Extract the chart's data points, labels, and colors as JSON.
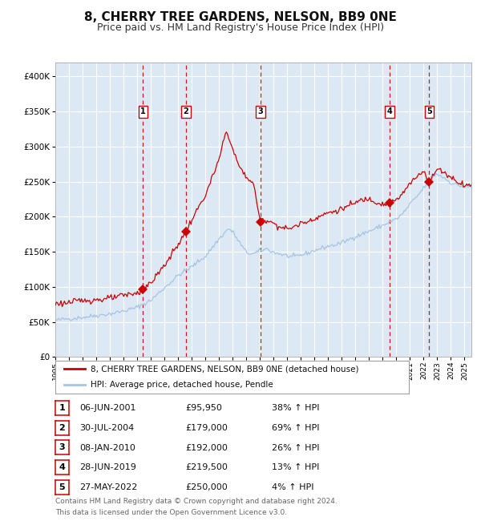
{
  "title": "8, CHERRY TREE GARDENS, NELSON, BB9 0NE",
  "subtitle": "Price paid vs. HM Land Registry's House Price Index (HPI)",
  "title_fontsize": 11,
  "subtitle_fontsize": 9,
  "ylim": [
    0,
    420000
  ],
  "yticks": [
    0,
    50000,
    100000,
    150000,
    200000,
    250000,
    300000,
    350000,
    400000
  ],
  "background_color": "#ffffff",
  "plot_bg_color": "#dce9f5",
  "grid_color": "#ffffff",
  "hpi_color": "#a8c4e0",
  "price_color": "#cc0000",
  "marker_color": "#cc0000",
  "dashed_line_color": "#cc0000",
  "label_box_color": "#ffffff",
  "label_box_edge": "#cc0000",
  "purchases": [
    {
      "label": "1",
      "date_num": 2001.43,
      "price": 95950,
      "date_str": "06-JUN-2001",
      "pct": "38%"
    },
    {
      "label": "2",
      "date_num": 2004.58,
      "price": 179000,
      "date_str": "30-JUL-2004",
      "pct": "69%"
    },
    {
      "label": "3",
      "date_num": 2010.03,
      "price": 192000,
      "date_str": "08-JAN-2010",
      "pct": "26%"
    },
    {
      "label": "4",
      "date_num": 2019.49,
      "price": 219500,
      "date_str": "28-JUN-2019",
      "pct": "13%"
    },
    {
      "label": "5",
      "date_num": 2022.41,
      "price": 250000,
      "date_str": "27-MAY-2022",
      "pct": "4%"
    }
  ],
  "legend_line1": "8, CHERRY TREE GARDENS, NELSON, BB9 0NE (detached house)",
  "legend_line2": "HPI: Average price, detached house, Pendle",
  "table_rows": [
    [
      "1",
      "06-JUN-2001",
      "£95,950",
      "38% ↑ HPI"
    ],
    [
      "2",
      "30-JUL-2004",
      "£179,000",
      "69% ↑ HPI"
    ],
    [
      "3",
      "08-JAN-2010",
      "£192,000",
      "26% ↑ HPI"
    ],
    [
      "4",
      "28-JUN-2019",
      "£219,500",
      "13% ↑ HPI"
    ],
    [
      "5",
      "27-MAY-2022",
      "£250,000",
      "4% ↑ HPI"
    ]
  ],
  "footer_line1": "Contains HM Land Registry data © Crown copyright and database right 2024.",
  "footer_line2": "This data is licensed under the Open Government Licence v3.0.",
  "xmin": 1995.0,
  "xmax": 2025.5,
  "hpi_anchors": [
    [
      1995.0,
      52000
    ],
    [
      1996.0,
      54000
    ],
    [
      1997.0,
      57000
    ],
    [
      1998.0,
      60000
    ],
    [
      1999.0,
      63000
    ],
    [
      2000.0,
      67000
    ],
    [
      2001.0,
      72000
    ],
    [
      2002.0,
      82000
    ],
    [
      2003.0,
      100000
    ],
    [
      2004.0,
      118000
    ],
    [
      2005.0,
      130000
    ],
    [
      2006.0,
      145000
    ],
    [
      2007.0,
      170000
    ],
    [
      2007.7,
      185000
    ],
    [
      2008.0,
      180000
    ],
    [
      2008.5,
      165000
    ],
    [
      2009.0,
      150000
    ],
    [
      2009.5,
      148000
    ],
    [
      2010.0,
      152000
    ],
    [
      2010.5,
      155000
    ],
    [
      2011.0,
      150000
    ],
    [
      2011.5,
      148000
    ],
    [
      2012.0,
      145000
    ],
    [
      2012.5,
      143000
    ],
    [
      2013.0,
      145000
    ],
    [
      2013.5,
      148000
    ],
    [
      2014.0,
      152000
    ],
    [
      2014.5,
      155000
    ],
    [
      2015.0,
      158000
    ],
    [
      2015.5,
      160000
    ],
    [
      2016.0,
      163000
    ],
    [
      2016.5,
      167000
    ],
    [
      2017.0,
      172000
    ],
    [
      2017.5,
      176000
    ],
    [
      2018.0,
      180000
    ],
    [
      2018.5,
      184000
    ],
    [
      2019.0,
      188000
    ],
    [
      2019.5,
      193000
    ],
    [
      2020.0,
      197000
    ],
    [
      2020.5,
      205000
    ],
    [
      2021.0,
      218000
    ],
    [
      2021.5,
      228000
    ],
    [
      2022.0,
      240000
    ],
    [
      2022.5,
      255000
    ],
    [
      2023.0,
      260000
    ],
    [
      2023.5,
      255000
    ],
    [
      2024.0,
      248000
    ],
    [
      2024.5,
      245000
    ],
    [
      2025.0,
      242000
    ]
  ],
  "price_anchors": [
    [
      1995.0,
      76000
    ],
    [
      1996.0,
      78000
    ],
    [
      1997.0,
      80000
    ],
    [
      1998.0,
      82000
    ],
    [
      1999.0,
      84000
    ],
    [
      2000.0,
      87000
    ],
    [
      2001.0,
      90000
    ],
    [
      2001.43,
      95950
    ],
    [
      2002.0,
      105000
    ],
    [
      2003.0,
      130000
    ],
    [
      2004.0,
      160000
    ],
    [
      2004.58,
      179000
    ],
    [
      2005.0,
      195000
    ],
    [
      2006.0,
      230000
    ],
    [
      2007.0,
      280000
    ],
    [
      2007.5,
      320000
    ],
    [
      2007.8,
      310000
    ],
    [
      2008.0,
      295000
    ],
    [
      2008.5,
      270000
    ],
    [
      2009.0,
      255000
    ],
    [
      2009.5,
      248000
    ],
    [
      2010.03,
      192000
    ],
    [
      2010.5,
      195000
    ],
    [
      2011.0,
      190000
    ],
    [
      2011.5,
      185000
    ],
    [
      2012.0,
      182000
    ],
    [
      2012.5,
      185000
    ],
    [
      2013.0,
      190000
    ],
    [
      2013.5,
      193000
    ],
    [
      2014.0,
      198000
    ],
    [
      2014.5,
      202000
    ],
    [
      2015.0,
      206000
    ],
    [
      2015.5,
      208000
    ],
    [
      2016.0,
      212000
    ],
    [
      2016.5,
      216000
    ],
    [
      2017.0,
      220000
    ],
    [
      2017.5,
      224000
    ],
    [
      2018.0,
      226000
    ],
    [
      2018.5,
      222000
    ],
    [
      2019.0,
      220000
    ],
    [
      2019.49,
      219500
    ],
    [
      2020.0,
      225000
    ],
    [
      2020.5,
      235000
    ],
    [
      2021.0,
      248000
    ],
    [
      2021.5,
      258000
    ],
    [
      2022.0,
      268000
    ],
    [
      2022.41,
      250000
    ],
    [
      2022.7,
      260000
    ],
    [
      2023.0,
      270000
    ],
    [
      2023.5,
      265000
    ],
    [
      2024.0,
      258000
    ],
    [
      2024.5,
      252000
    ],
    [
      2025.0,
      248000
    ]
  ]
}
